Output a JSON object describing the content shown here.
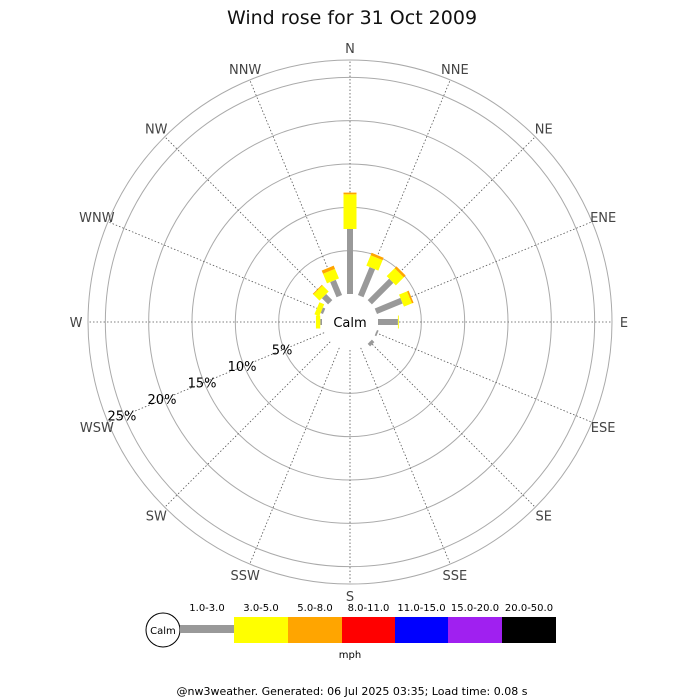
{
  "chart_data": {
    "type": "wind-rose",
    "title": "Wind rose for 31 Oct 2009",
    "directions": [
      "N",
      "NNE",
      "NE",
      "ENE",
      "E",
      "ESE",
      "SE",
      "SSE",
      "S",
      "SSW",
      "SW",
      "WSW",
      "W",
      "WNW",
      "NW",
      "NNW"
    ],
    "ring_labels": [
      "5%",
      "10%",
      "15%",
      "20%",
      "25%"
    ],
    "rings_percent": [
      5,
      10,
      15,
      20,
      25
    ],
    "max_percent": 27,
    "calm_label": "Calm",
    "unit_label": "mph",
    "bands": [
      {
        "label": "1.0-3.0",
        "color": "#999999"
      },
      {
        "label": "3.0-5.0",
        "color": "#ffff00"
      },
      {
        "label": "5.0-8.0",
        "color": "#ffa500"
      },
      {
        "label": "8.0-11.0",
        "color": "#ff0000"
      },
      {
        "label": "11.0-15.0",
        "color": "#0000ff"
      },
      {
        "label": "15.0-20.0",
        "color": "#a020f0"
      },
      {
        "label": "20.0-50.0",
        "color": "#000000"
      }
    ],
    "series": [
      {
        "direction": "N",
        "values": [
          7.5,
          4.0,
          0.2,
          0,
          0,
          0,
          0
        ]
      },
      {
        "direction": "NNE",
        "values": [
          3.5,
          1.3,
          0.3,
          0,
          0,
          0,
          0
        ]
      },
      {
        "direction": "NE",
        "values": [
          3.5,
          1.3,
          0.3,
          0,
          0,
          0,
          0
        ]
      },
      {
        "direction": "ENE",
        "values": [
          3.2,
          1.0,
          0.2,
          0,
          0,
          0,
          0
        ]
      },
      {
        "direction": "E",
        "values": [
          2.3,
          0.1,
          0,
          0,
          0,
          0,
          0
        ]
      },
      {
        "direction": "ESE",
        "values": [
          0.2,
          0,
          0,
          0,
          0,
          0,
          0
        ]
      },
      {
        "direction": "SE",
        "values": [
          0.4,
          0,
          0,
          0,
          0,
          0,
          0
        ]
      },
      {
        "direction": "SSE",
        "values": [
          0,
          0,
          0,
          0,
          0,
          0,
          0
        ]
      },
      {
        "direction": "S",
        "values": [
          0,
          0,
          0,
          0,
          0,
          0,
          0
        ]
      },
      {
        "direction": "SSW",
        "values": [
          0,
          0,
          0,
          0,
          0,
          0,
          0
        ]
      },
      {
        "direction": "SW",
        "values": [
          0,
          0,
          0,
          0,
          0,
          0,
          0
        ]
      },
      {
        "direction": "WSW",
        "values": [
          0,
          0,
          0,
          0,
          0,
          0,
          0
        ]
      },
      {
        "direction": "W",
        "values": [
          0.2,
          0.5,
          0,
          0,
          0,
          0,
          0
        ]
      },
      {
        "direction": "WNW",
        "values": [
          0.3,
          0.6,
          0,
          0,
          0,
          0,
          0
        ]
      },
      {
        "direction": "NW",
        "values": [
          1.0,
          1.0,
          0.1,
          0,
          0,
          0,
          0
        ]
      },
      {
        "direction": "NNW",
        "values": [
          1.9,
          1.2,
          0.4,
          0,
          0,
          0,
          0
        ]
      }
    ]
  },
  "footer": "@nw3weather.  Generated: 06 Jul 2025 03:35; Load time: 0.08 s"
}
